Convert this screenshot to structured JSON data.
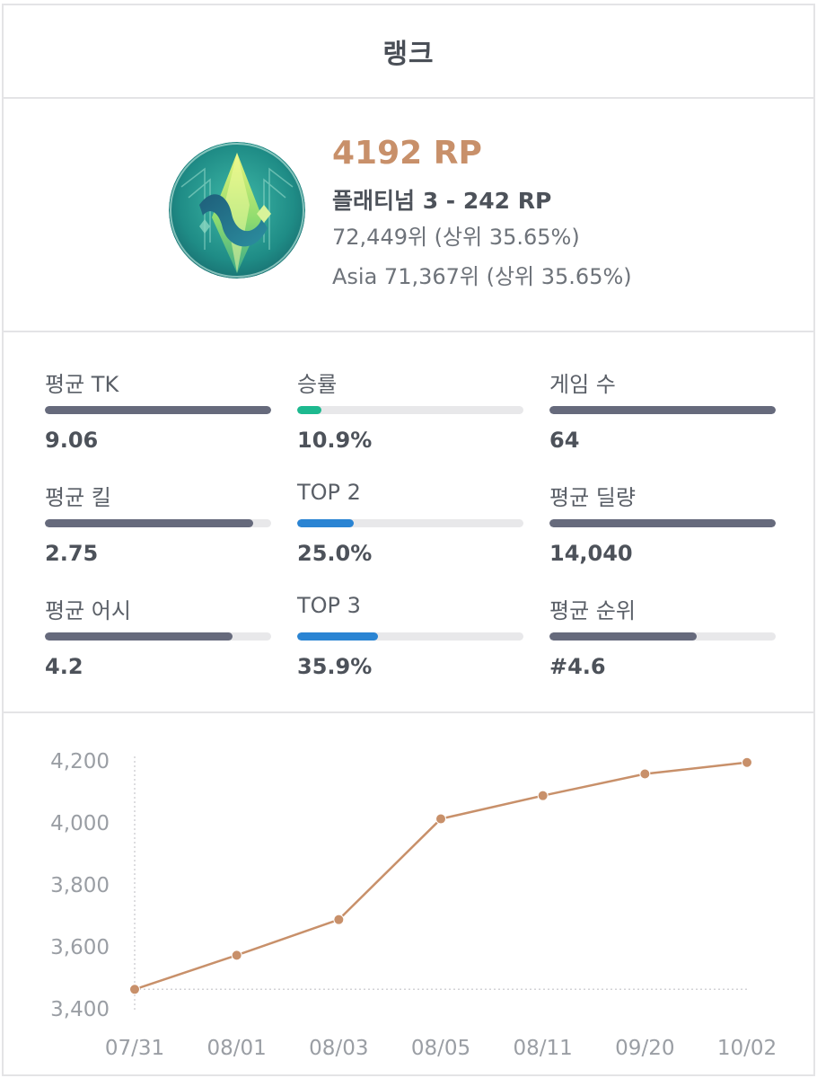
{
  "header": {
    "title": "랭크"
  },
  "profile": {
    "emblem_icon": "platinum-tier-emblem-icon",
    "rp": "4192 RP",
    "tier": "플래티넘 3 - 242 RP",
    "rank": "72,449위 (상위 35.65%)",
    "region_rank": "Asia 71,367위 (상위 35.65%)"
  },
  "stats": [
    {
      "label": "평균 TK",
      "value": "9.06",
      "fill": 1.0,
      "color": "#666a7c"
    },
    {
      "label": "승률",
      "value": "10.9%",
      "fill": 0.109,
      "color": "#1db98f"
    },
    {
      "label": "게임 수",
      "value": "64",
      "fill": 1.0,
      "color": "#666a7c"
    },
    {
      "label": "평균 킬",
      "value": "2.75",
      "fill": 0.92,
      "color": "#666a7c"
    },
    {
      "label": "TOP 2",
      "value": "25.0%",
      "fill": 0.25,
      "color": "#2a84d3"
    },
    {
      "label": "평균 딜량",
      "value": "14,040",
      "fill": 1.0,
      "color": "#666a7c"
    },
    {
      "label": "평균 어시",
      "value": "4.2",
      "fill": 0.83,
      "color": "#666a7c"
    },
    {
      "label": "TOP 3",
      "value": "35.9%",
      "fill": 0.359,
      "color": "#2a84d3"
    },
    {
      "label": "평균 순위",
      "value": "#4.6",
      "fill": 0.65,
      "color": "#666a7c"
    }
  ],
  "chart_data": {
    "type": "line",
    "categories": [
      "07/31",
      "08/01",
      "08/03",
      "08/05",
      "08/11",
      "09/20",
      "10/02"
    ],
    "series": [
      {
        "values": [
          3460,
          3570,
          3685,
          4010,
          4085,
          4155,
          4192
        ],
        "color": "#c8906a"
      }
    ],
    "yticks": [
      "3,400",
      "3,600",
      "3,800",
      "4,000",
      "4,200"
    ],
    "ylim": [
      3400,
      4200
    ],
    "grid": false,
    "baseline": 3460
  }
}
